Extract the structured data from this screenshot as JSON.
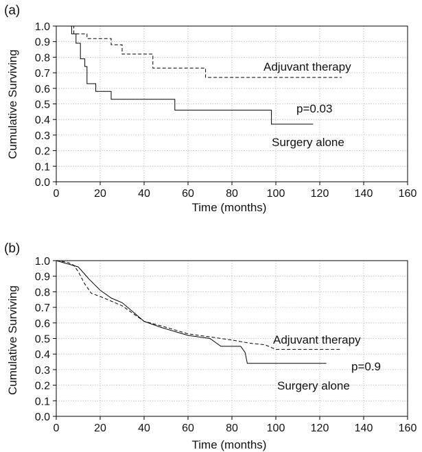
{
  "chart_data": [
    {
      "type": "line",
      "panel_label": "(a)",
      "xlabel": "Time (months)",
      "ylabel": "Cumulative Surviving",
      "xlim": [
        0,
        160
      ],
      "ylim": [
        0,
        1.0
      ],
      "xticks": [
        0,
        20,
        40,
        60,
        80,
        100,
        120,
        140,
        160
      ],
      "yticks": [
        0.0,
        0.1,
        0.2,
        0.3,
        0.4,
        0.5,
        0.6,
        0.7,
        0.8,
        0.9,
        1.0
      ],
      "grid": true,
      "series": [
        {
          "name": "Adjuvant therapy",
          "style": "dashed",
          "step": true,
          "points": [
            [
              0,
              1.0
            ],
            [
              8,
              0.95
            ],
            [
              14,
              0.92
            ],
            [
              25,
              0.88
            ],
            [
              30,
              0.82
            ],
            [
              44,
              0.73
            ],
            [
              68,
              0.67
            ],
            [
              130,
              0.67
            ]
          ]
        },
        {
          "name": "Surgery alone",
          "style": "solid",
          "step": true,
          "points": [
            [
              0,
              1.0
            ],
            [
              7,
              0.95
            ],
            [
              9,
              0.89
            ],
            [
              11,
              0.79
            ],
            [
              13,
              0.74
            ],
            [
              14,
              0.63
            ],
            [
              18,
              0.58
            ],
            [
              25,
              0.53
            ],
            [
              54,
              0.46
            ],
            [
              98,
              0.37
            ],
            [
              117,
              0.37
            ]
          ]
        }
      ],
      "annotations": [
        "p=0.03"
      ]
    },
    {
      "type": "line",
      "panel_label": "(b)",
      "xlabel": "Time (months)",
      "ylabel": "Cumulative Surviving",
      "xlim": [
        0,
        160
      ],
      "ylim": [
        0,
        1.0
      ],
      "xticks": [
        0,
        20,
        40,
        60,
        80,
        100,
        120,
        140,
        160
      ],
      "yticks": [
        0.0,
        0.1,
        0.2,
        0.3,
        0.4,
        0.5,
        0.6,
        0.7,
        0.8,
        0.9,
        1.0
      ],
      "grid": true,
      "series": [
        {
          "name": "Adjuvant therapy",
          "style": "dashed",
          "step": false,
          "points": [
            [
              0,
              1.0
            ],
            [
              5,
              0.99
            ],
            [
              8,
              0.97
            ],
            [
              10,
              0.93
            ],
            [
              13,
              0.85
            ],
            [
              16,
              0.79
            ],
            [
              20,
              0.77
            ],
            [
              25,
              0.74
            ],
            [
              30,
              0.71
            ],
            [
              35,
              0.66
            ],
            [
              40,
              0.61
            ],
            [
              48,
              0.58
            ],
            [
              60,
              0.53
            ],
            [
              70,
              0.51
            ],
            [
              80,
              0.49
            ],
            [
              88,
              0.47
            ],
            [
              95,
              0.46
            ],
            [
              100,
              0.43
            ],
            [
              130,
              0.43
            ]
          ]
        },
        {
          "name": "Surgery alone",
          "style": "solid",
          "step": false,
          "points": [
            [
              0,
              1.0
            ],
            [
              5,
              0.98
            ],
            [
              10,
              0.96
            ],
            [
              15,
              0.88
            ],
            [
              20,
              0.81
            ],
            [
              25,
              0.76
            ],
            [
              30,
              0.73
            ],
            [
              35,
              0.67
            ],
            [
              40,
              0.61
            ],
            [
              48,
              0.57
            ],
            [
              60,
              0.52
            ],
            [
              70,
              0.5
            ],
            [
              75,
              0.45
            ],
            [
              84,
              0.45
            ],
            [
              86,
              0.41
            ],
            [
              87,
              0.34
            ],
            [
              123,
              0.34
            ]
          ]
        }
      ],
      "annotations": [
        "p=0.9"
      ]
    }
  ]
}
